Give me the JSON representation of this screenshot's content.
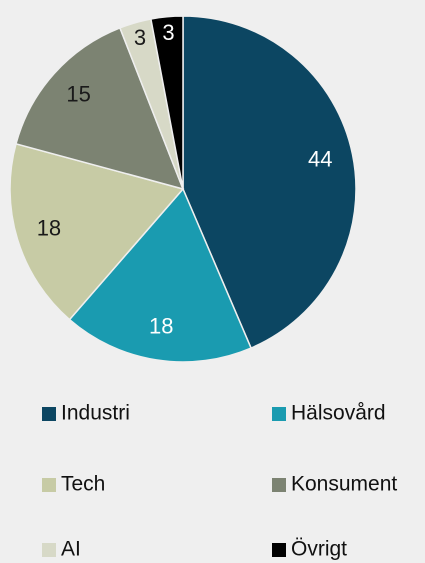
{
  "chart_data": {
    "type": "pie",
    "categories": [
      "Industri",
      "Hälsovård",
      "Tech",
      "Konsument",
      "AI",
      "Övrigt"
    ],
    "values": [
      44,
      18,
      18,
      15,
      3,
      3
    ],
    "colors": [
      "#0c4662",
      "#1a9bb0",
      "#c7cba5",
      "#7c8372",
      "#d7d9c7",
      "#000000"
    ],
    "legend": "bottom"
  }
}
